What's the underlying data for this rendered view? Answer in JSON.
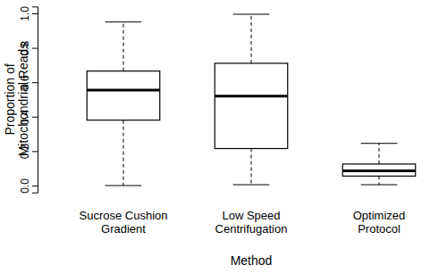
{
  "chart_data": {
    "type": "box",
    "x_label": "Method",
    "y_label": "Proportion of\nMitochondrial Reads",
    "categories": [
      "Sucrose Cushion\nGradient",
      "Low Speed\nCentrifugation",
      "Optimized\nProtocol"
    ],
    "whisker_low": [
      0.0,
      0.005,
      0.005
    ],
    "q1": [
      0.38,
      0.215,
      0.055
    ],
    "median": [
      0.555,
      0.52,
      0.085
    ],
    "q3": [
      0.665,
      0.71,
      0.125
    ],
    "whisker_high": [
      0.95,
      0.995,
      0.245
    ],
    "color": "#000000",
    "ylim": [
      -0.04,
      1.04
    ],
    "yticks": [
      {
        "value": 0,
        "label": "0.0"
      },
      {
        "value": 0.2,
        "label": "0.2"
      },
      {
        "value": 0.4,
        "label": "0.4"
      },
      {
        "value": 0.6,
        "label": "0.6"
      },
      {
        "value": 0.8,
        "label": "0.8"
      },
      {
        "value": 1,
        "label": "1.0"
      }
    ]
  }
}
